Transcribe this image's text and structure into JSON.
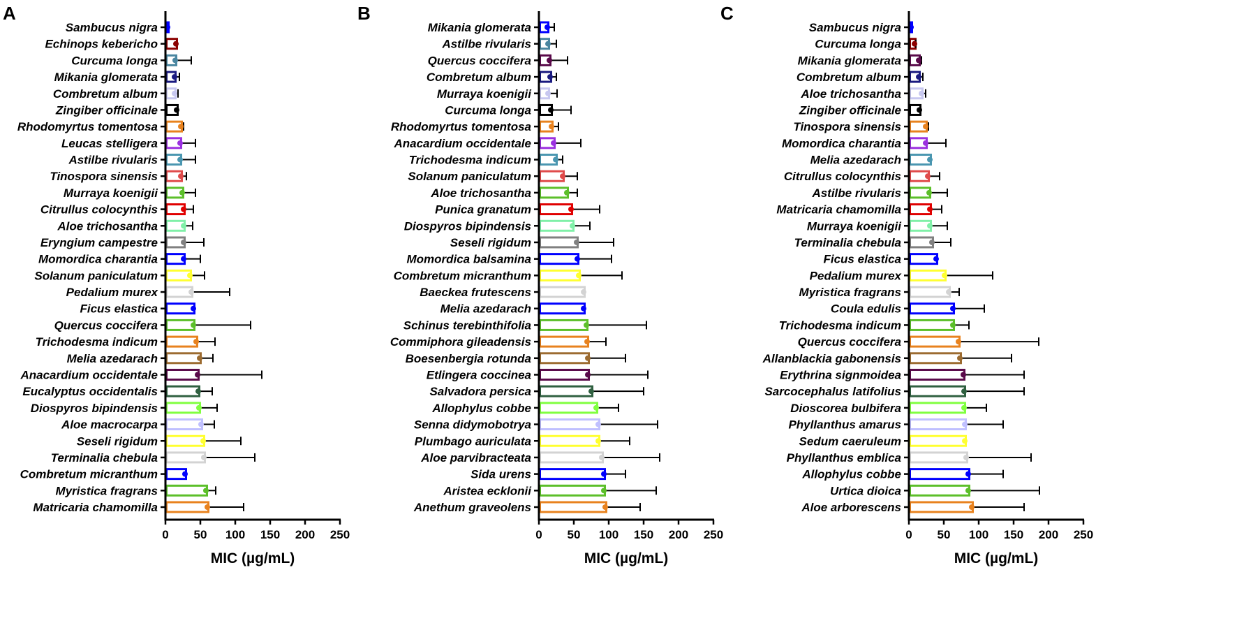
{
  "chart_data": [
    {
      "type": "bar",
      "orientation": "horizontal",
      "panel": "A",
      "xlabel": "MIC (µg/mL)",
      "xlim": [
        0,
        250
      ],
      "xticks": [
        "0",
        "50",
        "100",
        "150",
        "200",
        "250"
      ],
      "bars": [
        {
          "label": "Sambucus nigra",
          "mic": 3,
          "whisker": 3,
          "color": "#0000ff"
        },
        {
          "label": "Echinops kebericho",
          "mic": 15,
          "whisker": 15,
          "color": "#8b0000"
        },
        {
          "label": "Curcuma longa",
          "mic": 14,
          "whisker": 37,
          "color": "#4a86a0"
        },
        {
          "label": "Mikania glomerata",
          "mic": 13,
          "whisker": 20,
          "color": "#1a1a80"
        },
        {
          "label": "Combretum album",
          "mic": 13,
          "whisker": 18,
          "color": "#c8c8f0"
        },
        {
          "label": "Zingiber officinale",
          "mic": 16,
          "whisker": 16,
          "color": "#000000"
        },
        {
          "label": "Rhodomyrtus tomentosa",
          "mic": 22,
          "whisker": 26,
          "color": "#e8821e"
        },
        {
          "label": "Leucas stelligera",
          "mic": 21,
          "whisker": 43,
          "color": "#9b30e0"
        },
        {
          "label": "Astilbe rivularis",
          "mic": 21,
          "whisker": 43,
          "color": "#4a96b0"
        },
        {
          "label": "Tinospora sinensis",
          "mic": 22,
          "whisker": 30,
          "color": "#e04a4a"
        },
        {
          "label": "Murraya koenigii",
          "mic": 24,
          "whisker": 43,
          "color": "#5cbf2a"
        },
        {
          "label": "Citrullus colocynthis",
          "mic": 26,
          "whisker": 40,
          "color": "#e00000"
        },
        {
          "label": "Aloe trichosantha",
          "mic": 26,
          "whisker": 39,
          "color": "#80f0a8"
        },
        {
          "label": "Eryngium campestre",
          "mic": 26,
          "whisker": 55,
          "color": "#808080"
        },
        {
          "label": "Momordica charantia",
          "mic": 26,
          "whisker": 50,
          "color": "#0000ff"
        },
        {
          "label": "Solanum paniculatum",
          "mic": 35,
          "whisker": 56,
          "color": "#ffff30"
        },
        {
          "label": "Pedalium murex",
          "mic": 37,
          "whisker": 92,
          "color": "#d3d3d3"
        },
        {
          "label": "Ficus elastica",
          "mic": 40,
          "whisker": 40,
          "color": "#0000ff"
        },
        {
          "label": "Quercus coccifera",
          "mic": 40,
          "whisker": 122,
          "color": "#5cbf2a"
        },
        {
          "label": "Trichodesma indicum",
          "mic": 44,
          "whisker": 71,
          "color": "#e8821e"
        },
        {
          "label": "Melia azedarach",
          "mic": 49,
          "whisker": 68,
          "color": "#9c6b30"
        },
        {
          "label": "Anacardium occidentale",
          "mic": 46,
          "whisker": 138,
          "color": "#5a0a4a"
        },
        {
          "label": "Eucalyptus occidentalis",
          "mic": 47,
          "whisker": 67,
          "color": "#2f6040"
        },
        {
          "label": "Diospyros bipindensis",
          "mic": 48,
          "whisker": 74,
          "color": "#80ff40"
        },
        {
          "label": "Aloe macrocarpa",
          "mic": 51,
          "whisker": 70,
          "color": "#c0c0ff"
        },
        {
          "label": "Seseli rigidum",
          "mic": 54,
          "whisker": 108,
          "color": "#ffff30"
        },
        {
          "label": "Terminalia chebula",
          "mic": 55,
          "whisker": 128,
          "color": "#d3d3d3"
        },
        {
          "label": "Combretum micranthum",
          "mic": 28,
          "whisker": 28,
          "color": "#0000ff"
        },
        {
          "label": "Myristica fragrans",
          "mic": 58,
          "whisker": 72,
          "color": "#5cbf2a"
        },
        {
          "label": "Matricaria chamomilla",
          "mic": 60,
          "whisker": 112,
          "color": "#e8821e"
        }
      ]
    },
    {
      "type": "bar",
      "orientation": "horizontal",
      "panel": "B",
      "xlabel": "MIC (µg/mL)",
      "xlim": [
        0,
        250
      ],
      "xticks": [
        "0",
        "50",
        "100",
        "150",
        "200",
        "250"
      ],
      "bars": [
        {
          "label": "Mikania glomerata",
          "mic": 12,
          "whisker": 22,
          "color": "#0000ff"
        },
        {
          "label": "Astilbe rivularis",
          "mic": 13,
          "whisker": 25,
          "color": "#4a86a0"
        },
        {
          "label": "Quercus coccifera",
          "mic": 15,
          "whisker": 41,
          "color": "#5a0a4a"
        },
        {
          "label": "Combretum album",
          "mic": 16,
          "whisker": 25,
          "color": "#1a1a80"
        },
        {
          "label": "Murraya koenigii",
          "mic": 13,
          "whisker": 26,
          "color": "#c8c8f0"
        },
        {
          "label": "Curcuma longa",
          "mic": 17,
          "whisker": 46,
          "color": "#000000"
        },
        {
          "label": "Rhodomyrtus tomentosa",
          "mic": 18,
          "whisker": 28,
          "color": "#e8821e"
        },
        {
          "label": "Anacardium occidentale",
          "mic": 21,
          "whisker": 60,
          "color": "#9b30e0"
        },
        {
          "label": "Trichodesma indicum",
          "mic": 24,
          "whisker": 34,
          "color": "#4a96b0"
        },
        {
          "label": "Solanum paniculatum",
          "mic": 34,
          "whisker": 55,
          "color": "#e04a4a"
        },
        {
          "label": "Aloe trichosantha",
          "mic": 40,
          "whisker": 55,
          "color": "#5cbf2a"
        },
        {
          "label": "Punica granatum",
          "mic": 46,
          "whisker": 87,
          "color": "#e00000"
        },
        {
          "label": "Diospyros bipindensis",
          "mic": 48,
          "whisker": 73,
          "color": "#80f0a8"
        },
        {
          "label": "Seseli rigidum",
          "mic": 54,
          "whisker": 107,
          "color": "#808080"
        },
        {
          "label": "Momordica balsamina",
          "mic": 55,
          "whisker": 104,
          "color": "#0000ff"
        },
        {
          "label": "Combretum micranthum",
          "mic": 57,
          "whisker": 119,
          "color": "#ffff30"
        },
        {
          "label": "Baeckea frutescens",
          "mic": 64,
          "whisker": 64,
          "color": "#d3d3d3"
        },
        {
          "label": "Melia azedarach",
          "mic": 64,
          "whisker": 64,
          "color": "#0000ff"
        },
        {
          "label": "Schinus terebinthifolia",
          "mic": 68,
          "whisker": 154,
          "color": "#5cbf2a"
        },
        {
          "label": "Commiphora gileadensis",
          "mic": 69,
          "whisker": 96,
          "color": "#e8821e"
        },
        {
          "label": "Boesenbergia rotunda",
          "mic": 70,
          "whisker": 124,
          "color": "#9c6b30"
        },
        {
          "label": "Etlingera coccinea",
          "mic": 70,
          "whisker": 156,
          "color": "#5a0a4a"
        },
        {
          "label": "Salvadora persica",
          "mic": 75,
          "whisker": 150,
          "color": "#2f6040"
        },
        {
          "label": "Allophylus cobbe",
          "mic": 82,
          "whisker": 114,
          "color": "#80ff40"
        },
        {
          "label": "Senna didymobotrya",
          "mic": 85,
          "whisker": 170,
          "color": "#c0c0ff"
        },
        {
          "label": "Plumbago auriculata",
          "mic": 85,
          "whisker": 130,
          "color": "#ffff30"
        },
        {
          "label": "Aloe parvibracteata",
          "mic": 90,
          "whisker": 173,
          "color": "#d3d3d3"
        },
        {
          "label": "Sida urens",
          "mic": 93,
          "whisker": 124,
          "color": "#0000ff"
        },
        {
          "label": "Aristea ecklonii",
          "mic": 93,
          "whisker": 168,
          "color": "#5cbf2a"
        },
        {
          "label": "Anethum graveolens",
          "mic": 95,
          "whisker": 145,
          "color": "#e8821e"
        }
      ]
    },
    {
      "type": "bar",
      "orientation": "horizontal",
      "panel": "C",
      "xlabel": "MIC (µg/mL)",
      "xlim": [
        0,
        250
      ],
      "xticks": [
        "0",
        "50",
        "100",
        "150",
        "200",
        "250"
      ],
      "bars": [
        {
          "label": "Sambucus nigra",
          "mic": 3,
          "whisker": 3,
          "color": "#0000ff"
        },
        {
          "label": "Curcuma longa",
          "mic": 8,
          "whisker": 10,
          "color": "#8b0000"
        },
        {
          "label": "Mikania glomerata",
          "mic": 14,
          "whisker": 18,
          "color": "#5a0a4a"
        },
        {
          "label": "Combretum album",
          "mic": 14,
          "whisker": 20,
          "color": "#1a1a80"
        },
        {
          "label": "Aloe trichosantha",
          "mic": 18,
          "whisker": 24,
          "color": "#c8c8f0"
        },
        {
          "label": "Zingiber officinale",
          "mic": 15,
          "whisker": 15,
          "color": "#000000"
        },
        {
          "label": "Tinospora sinensis",
          "mic": 24,
          "whisker": 28,
          "color": "#e8821e"
        },
        {
          "label": "Momordica charantia",
          "mic": 24,
          "whisker": 53,
          "color": "#9b30e0"
        },
        {
          "label": "Melia azedarach",
          "mic": 30,
          "whisker": 30,
          "color": "#4a96b0"
        },
        {
          "label": "Citrullus colocynthis",
          "mic": 27,
          "whisker": 44,
          "color": "#e04a4a"
        },
        {
          "label": "Astilbe rivularis",
          "mic": 29,
          "whisker": 55,
          "color": "#5cbf2a"
        },
        {
          "label": "Matricaria chamomilla",
          "mic": 30,
          "whisker": 47,
          "color": "#e00000"
        },
        {
          "label": "Murraya koenigii",
          "mic": 30,
          "whisker": 55,
          "color": "#80f0a8"
        },
        {
          "label": "Terminalia chebula",
          "mic": 33,
          "whisker": 60,
          "color": "#808080"
        },
        {
          "label": "Ficus elastica",
          "mic": 39,
          "whisker": 39,
          "color": "#0000ff"
        },
        {
          "label": "Pedalium murex",
          "mic": 51,
          "whisker": 120,
          "color": "#ffff30"
        },
        {
          "label": "Myristica fragrans",
          "mic": 57,
          "whisker": 72,
          "color": "#d3d3d3"
        },
        {
          "label": "Coula edulis",
          "mic": 63,
          "whisker": 108,
          "color": "#0000ff"
        },
        {
          "label": "Trichodesma indicum",
          "mic": 63,
          "whisker": 86,
          "color": "#5cbf2a"
        },
        {
          "label": "Quercus coccifera",
          "mic": 71,
          "whisker": 186,
          "color": "#e8821e"
        },
        {
          "label": "Allanblackia gabonensis",
          "mic": 73,
          "whisker": 147,
          "color": "#9c6b30"
        },
        {
          "label": "Erythrina signmoidea",
          "mic": 78,
          "whisker": 165,
          "color": "#5a0a4a"
        },
        {
          "label": "Sarcocephalus latifolius",
          "mic": 79,
          "whisker": 165,
          "color": "#2f6040"
        },
        {
          "label": "Dioscorea bulbifera",
          "mic": 79,
          "whisker": 111,
          "color": "#80ff40"
        },
        {
          "label": "Phyllanthus amarus",
          "mic": 80,
          "whisker": 135,
          "color": "#c0c0ff"
        },
        {
          "label": "Sedum caeruleum",
          "mic": 80,
          "whisker": 80,
          "color": "#ffff30"
        },
        {
          "label": "Phyllanthus emblica",
          "mic": 82,
          "whisker": 175,
          "color": "#d3d3d3"
        },
        {
          "label": "Allophylus cobbe",
          "mic": 85,
          "whisker": 135,
          "color": "#0000ff"
        },
        {
          "label": "Urtica dioica",
          "mic": 85,
          "whisker": 187,
          "color": "#5cbf2a"
        },
        {
          "label": "Aloe arborescens",
          "mic": 90,
          "whisker": 165,
          "color": "#e8821e"
        }
      ]
    }
  ]
}
